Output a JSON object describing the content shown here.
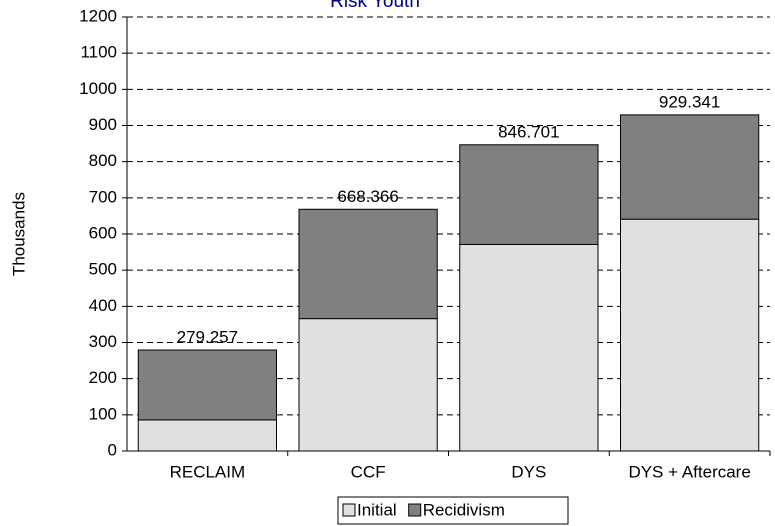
{
  "chart_data": {
    "type": "stacked_bar",
    "title": "Risk Youth",
    "y_label": "Thousands",
    "categories": [
      "RECLAIM",
      "CCF",
      "DYS",
      "DYS + Aftercare"
    ],
    "series": [
      {
        "name": "Initial",
        "color": "#e0e0e0",
        "values": [
          86,
          366,
          571,
          641
        ]
      },
      {
        "name": "Recidivism",
        "color": "#808080",
        "values": [
          193.257,
          302.366,
          275.701,
          288.341
        ]
      }
    ],
    "totals": [
      279.257,
      668.366,
      846.701,
      929.341
    ],
    "ylim": [
      0,
      1200
    ],
    "yticks": [
      0,
      100,
      200,
      300,
      400,
      500,
      600,
      700,
      800,
      900,
      1000,
      1100,
      1200
    ],
    "grid": true,
    "legend": "bottom"
  }
}
